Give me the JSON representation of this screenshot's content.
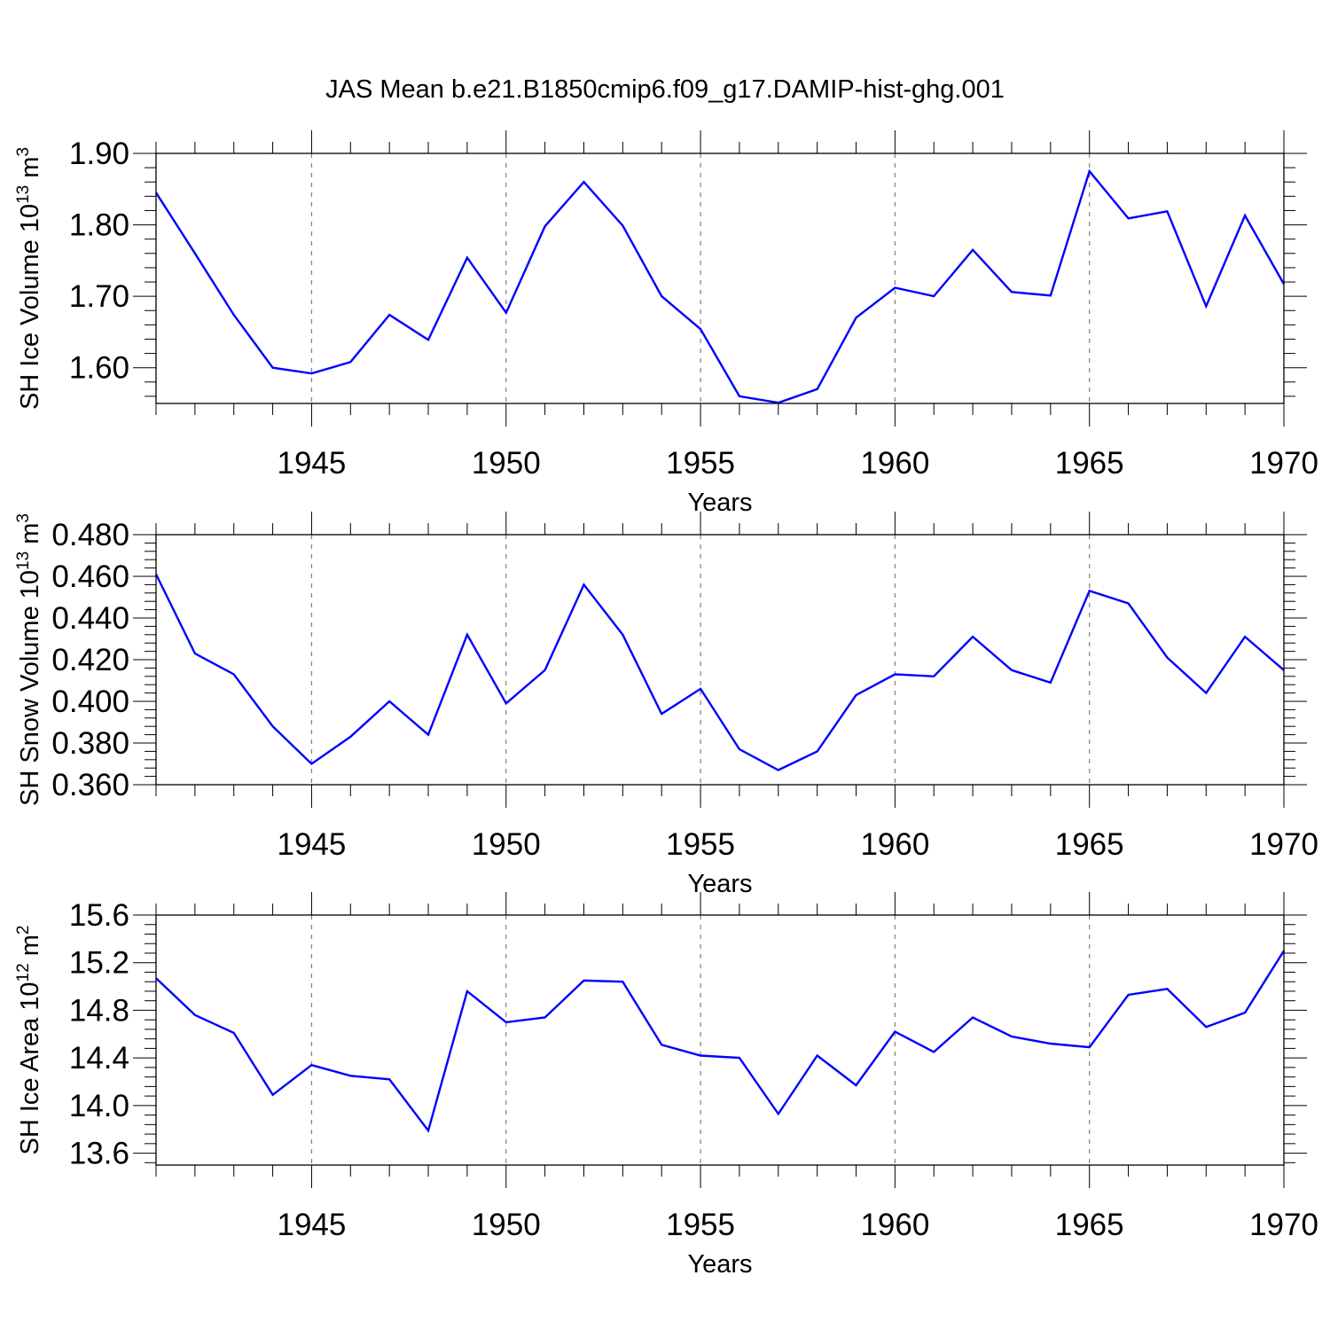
{
  "title": "JAS Mean b.e21.B1850cmip6.f09_g17.DAMIP-hist-ghg.001",
  "colors": {
    "line": "#0000ff",
    "axis": "#000000",
    "grid": "#808080",
    "background": "#ffffff"
  },
  "chart_data": [
    {
      "type": "line",
      "ylabel_main": "SH Ice Volume 10",
      "ylabel_exp": "13",
      "ylabel_unit": "m",
      "ylabel_unit_exp": "3",
      "xlabel": "Years",
      "xlim": [
        1941,
        1970
      ],
      "ylim": [
        1.55,
        1.9
      ],
      "yticks": [
        1.6,
        1.7,
        1.8,
        1.9
      ],
      "ytick_labels": [
        "1.60",
        "1.70",
        "1.80",
        "1.90"
      ],
      "yminor_step": 0.02,
      "xticks": [
        1945,
        1950,
        1955,
        1960,
        1965,
        1970
      ],
      "xtick_labels": [
        "1945",
        "1950",
        "1955",
        "1960",
        "1965",
        "1970"
      ],
      "grid": "vertical dashed at major x ticks",
      "series": [
        {
          "name": "SH Ice Volume",
          "x": [
            1941,
            1942,
            1943,
            1944,
            1945,
            1946,
            1947,
            1948,
            1949,
            1950,
            1951,
            1952,
            1953,
            1954,
            1955,
            1956,
            1957,
            1958,
            1959,
            1960,
            1961,
            1962,
            1963,
            1964,
            1965,
            1966,
            1967,
            1968,
            1969,
            1970
          ],
          "values": [
            1.845,
            1.76,
            1.674,
            1.6,
            1.592,
            1.608,
            1.674,
            1.639,
            1.754,
            1.677,
            1.798,
            1.86,
            1.799,
            1.7,
            1.654,
            1.56,
            1.551,
            1.57,
            1.67,
            1.712,
            1.7,
            1.765,
            1.706,
            1.701,
            1.875,
            1.809,
            1.819,
            1.686,
            1.813,
            1.717
          ]
        }
      ]
    },
    {
      "type": "line",
      "ylabel_main": "SH Snow Volume 10",
      "ylabel_exp": "13",
      "ylabel_unit": "m",
      "ylabel_unit_exp": "3",
      "xlabel": "Years",
      "xlim": [
        1941,
        1970
      ],
      "ylim": [
        0.36,
        0.48
      ],
      "yticks": [
        0.36,
        0.38,
        0.4,
        0.42,
        0.44,
        0.46,
        0.48
      ],
      "ytick_labels": [
        "0.360",
        "0.380",
        "0.400",
        "0.420",
        "0.440",
        "0.460",
        "0.480"
      ],
      "yminor_step": 0.004,
      "xticks": [
        1945,
        1950,
        1955,
        1960,
        1965,
        1970
      ],
      "xtick_labels": [
        "1945",
        "1950",
        "1955",
        "1960",
        "1965",
        "1970"
      ],
      "grid": "vertical dashed at major x ticks",
      "series": [
        {
          "name": "SH Snow Volume",
          "x": [
            1941,
            1942,
            1943,
            1944,
            1945,
            1946,
            1947,
            1948,
            1949,
            1950,
            1951,
            1952,
            1953,
            1954,
            1955,
            1956,
            1957,
            1958,
            1959,
            1960,
            1961,
            1962,
            1963,
            1964,
            1965,
            1966,
            1967,
            1968,
            1969,
            1970
          ],
          "values": [
            0.461,
            0.423,
            0.413,
            0.388,
            0.37,
            0.383,
            0.4,
            0.384,
            0.432,
            0.399,
            0.415,
            0.456,
            0.432,
            0.394,
            0.406,
            0.377,
            0.367,
            0.376,
            0.403,
            0.413,
            0.412,
            0.431,
            0.415,
            0.409,
            0.453,
            0.447,
            0.421,
            0.404,
            0.431,
            0.415
          ]
        }
      ]
    },
    {
      "type": "line",
      "ylabel_main": "SH Ice Area 10",
      "ylabel_exp": "12",
      "ylabel_unit": "m",
      "ylabel_unit_exp": "2",
      "xlabel": "Years",
      "xlim": [
        1941,
        1970
      ],
      "ylim": [
        13.5,
        15.6
      ],
      "yticks": [
        13.6,
        14.0,
        14.4,
        14.8,
        15.2,
        15.6
      ],
      "ytick_labels": [
        "13.6",
        "14.0",
        "14.4",
        "14.8",
        "15.2",
        "15.6"
      ],
      "yminor_step": 0.08,
      "xticks": [
        1945,
        1950,
        1955,
        1960,
        1965,
        1970
      ],
      "xtick_labels": [
        "1945",
        "1950",
        "1955",
        "1960",
        "1965",
        "1970"
      ],
      "grid": "vertical dashed at major x ticks",
      "series": [
        {
          "name": "SH Ice Area",
          "x": [
            1941,
            1942,
            1943,
            1944,
            1945,
            1946,
            1947,
            1948,
            1949,
            1950,
            1951,
            1952,
            1953,
            1954,
            1955,
            1956,
            1957,
            1958,
            1959,
            1960,
            1961,
            1962,
            1963,
            1964,
            1965,
            1966,
            1967,
            1968,
            1969,
            1970
          ],
          "values": [
            15.07,
            14.76,
            14.61,
            14.09,
            14.34,
            14.25,
            14.22,
            13.79,
            14.96,
            14.7,
            14.74,
            15.05,
            15.04,
            14.51,
            14.42,
            14.4,
            13.93,
            14.42,
            14.17,
            14.62,
            14.45,
            14.74,
            14.58,
            14.52,
            14.49,
            14.93,
            14.98,
            14.66,
            14.78,
            15.3
          ]
        }
      ]
    }
  ]
}
